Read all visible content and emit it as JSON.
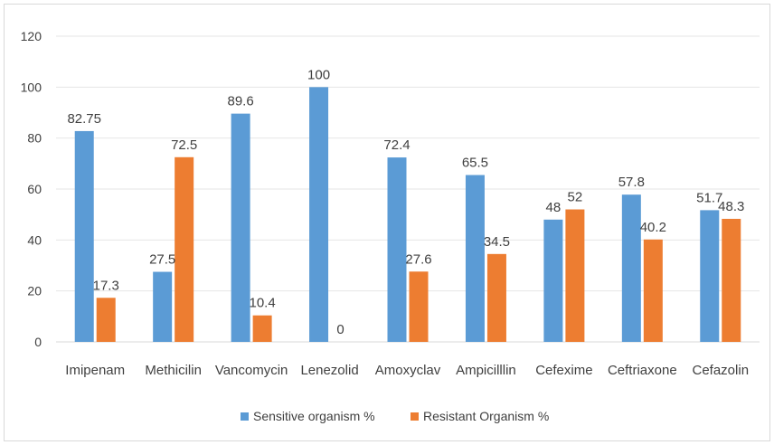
{
  "chart_data": {
    "type": "bar",
    "categories": [
      "Imipenam",
      "Methicilin",
      "Vancomycin",
      "Lenezolid",
      "Amoxyclav",
      "Ampicilllin",
      "Cefexime",
      "Ceftriaxone",
      "Cefazolin"
    ],
    "series": [
      {
        "name": "Sensitive organism %",
        "color": "#5b9bd5",
        "values": [
          82.75,
          27.5,
          89.6,
          100,
          72.4,
          65.5,
          48,
          57.8,
          51.7
        ],
        "labels": [
          "82.75",
          "27.5",
          "89.6",
          "100",
          "72.4",
          "65.5",
          "48",
          "57.8",
          "51.7"
        ]
      },
      {
        "name": "Resistant Organism %",
        "color": "#ed7d31",
        "values": [
          17.3,
          72.5,
          10.4,
          0,
          27.6,
          34.5,
          52,
          40.2,
          48.3
        ],
        "labels": [
          "17.3",
          "72.5",
          "10.4",
          "0",
          "27.6",
          "34.5",
          "52",
          "40.2",
          "48.3"
        ]
      }
    ],
    "yticks": [
      "0",
      "20",
      "40",
      "60",
      "80",
      "100",
      "120"
    ],
    "ylim": [
      0,
      120
    ],
    "title": "",
    "xlabel": "",
    "ylabel": "",
    "grid": true,
    "legend_position": "bottom"
  }
}
